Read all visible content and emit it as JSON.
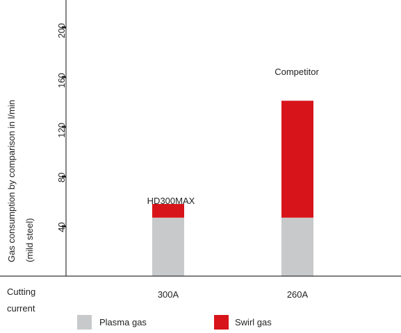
{
  "chart_data": {
    "type": "bar",
    "stacked": true,
    "categories": [
      "300A",
      "260A"
    ],
    "bar_titles": [
      "HD300MAX",
      "Competitor"
    ],
    "series": [
      {
        "name": "Plasma gas",
        "values": [
          47,
          47
        ],
        "color": "#c8c9ca"
      },
      {
        "name": "Swirl gas",
        "values": [
          11,
          94
        ],
        "color": "#d7141a"
      }
    ],
    "ylabel": "Gas consumption by comparison in l/min",
    "ylabel_sub": "(mild steel)",
    "xlabel_line1": "Cutting",
    "xlabel_line2": "current",
    "yticks": [
      40,
      80,
      120,
      160,
      200
    ],
    "ylim": [
      0,
      222
    ],
    "grid": false,
    "legend_position": "bottom"
  }
}
